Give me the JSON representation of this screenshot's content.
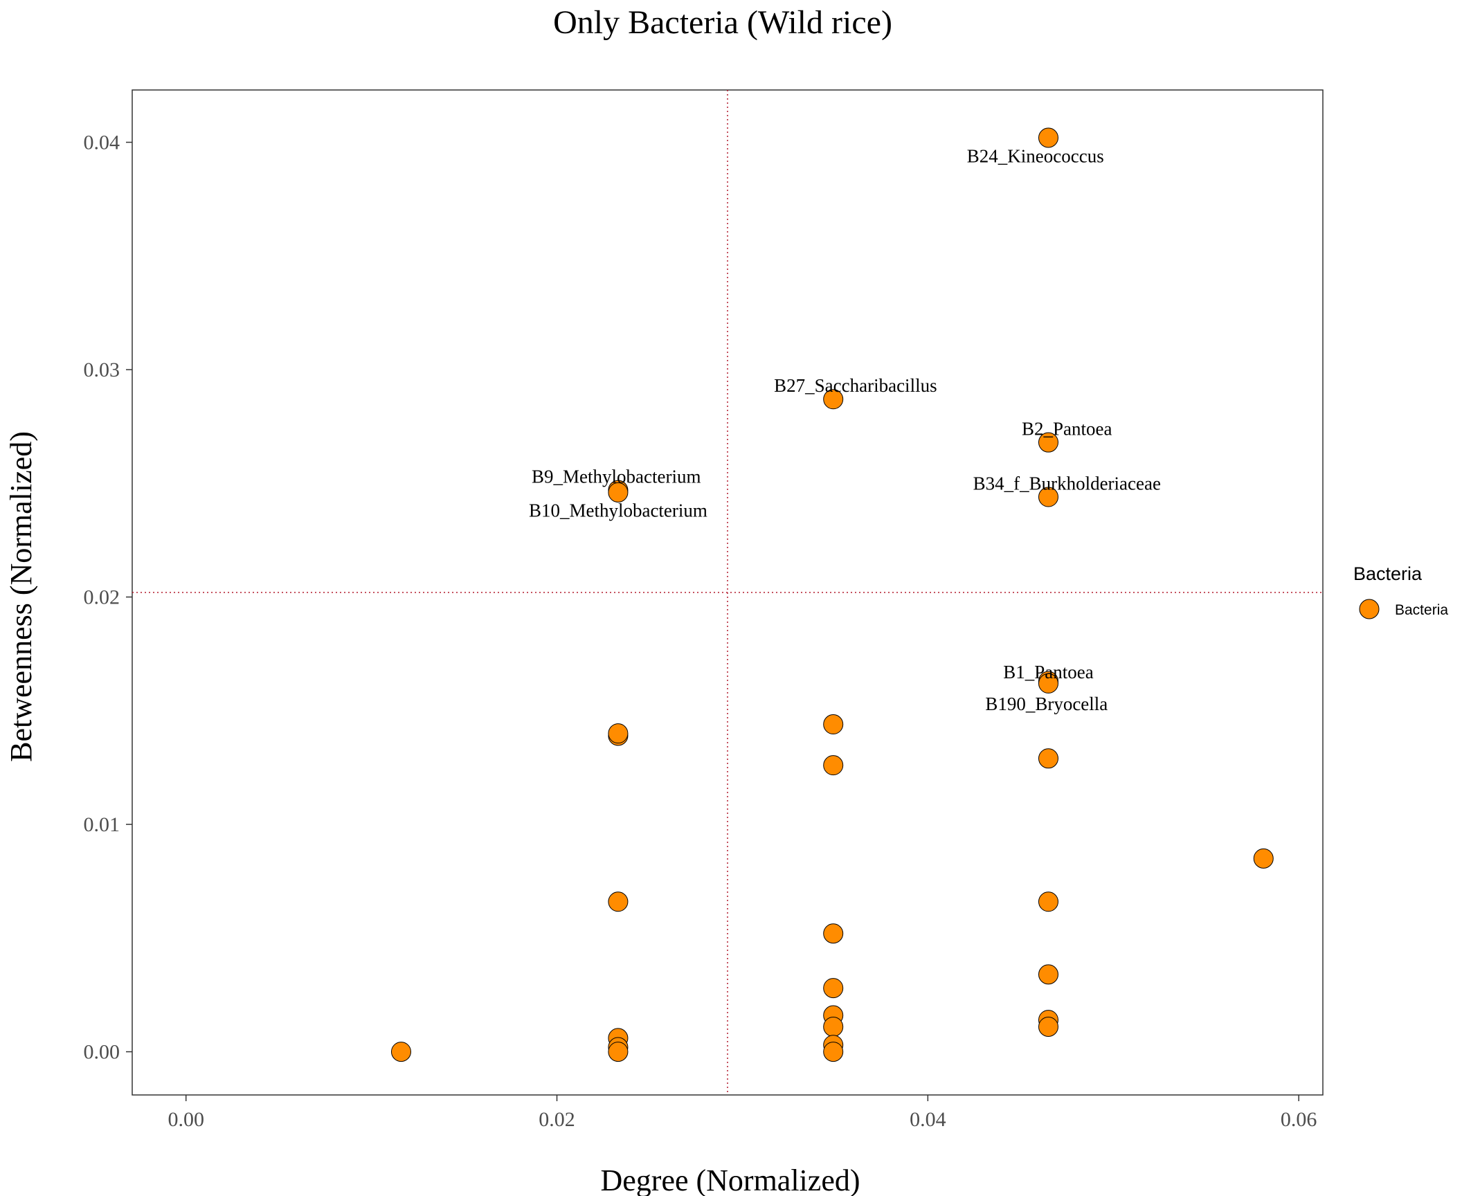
{
  "chart_data": {
    "type": "scatter",
    "title": "Only Bacteria (Wild rice)",
    "xlabel": "Degree (Normalized)",
    "ylabel": "Betweenness (Normalized)",
    "xlim": [
      -0.0029,
      0.0613
    ],
    "ylim": [
      -0.0019,
      0.0423
    ],
    "x_ticks": [
      0.0,
      0.02,
      0.04,
      0.06
    ],
    "x_tick_labels": [
      "0.00",
      "0.02",
      "0.04",
      "0.06"
    ],
    "y_ticks": [
      0.0,
      0.01,
      0.02,
      0.03,
      0.04
    ],
    "y_tick_labels": [
      "0.00",
      "0.01",
      "0.02",
      "0.03",
      "0.04"
    ],
    "grid": false,
    "reference_lines": {
      "vertical_x": 0.0292,
      "horizontal_y": 0.0202,
      "color": "#b2182b",
      "style": "dotted"
    },
    "legend": {
      "title": "Bacteria",
      "position": "right",
      "entries": [
        "Bacteria"
      ]
    },
    "marker_color": "#ff8c00",
    "marker_edge": "#000000",
    "points": [
      {
        "x": 0.0465,
        "y": 0.0402
      },
      {
        "x": 0.0349,
        "y": 0.0287
      },
      {
        "x": 0.0465,
        "y": 0.0268
      },
      {
        "x": 0.0465,
        "y": 0.0244
      },
      {
        "x": 0.0233,
        "y": 0.0247
      },
      {
        "x": 0.0233,
        "y": 0.0246
      },
      {
        "x": 0.0465,
        "y": 0.0163
      },
      {
        "x": 0.0465,
        "y": 0.0162
      },
      {
        "x": 0.0233,
        "y": 0.0139
      },
      {
        "x": 0.0233,
        "y": 0.014
      },
      {
        "x": 0.0349,
        "y": 0.0144
      },
      {
        "x": 0.0349,
        "y": 0.0126
      },
      {
        "x": 0.0465,
        "y": 0.0129
      },
      {
        "x": 0.0581,
        "y": 0.0085
      },
      {
        "x": 0.0233,
        "y": 0.0066
      },
      {
        "x": 0.0465,
        "y": 0.0066
      },
      {
        "x": 0.0349,
        "y": 0.0052
      },
      {
        "x": 0.0349,
        "y": 0.0028
      },
      {
        "x": 0.0465,
        "y": 0.0034
      },
      {
        "x": 0.0349,
        "y": 0.0016
      },
      {
        "x": 0.0349,
        "y": 0.0011
      },
      {
        "x": 0.0465,
        "y": 0.0014
      },
      {
        "x": 0.0465,
        "y": 0.0011
      },
      {
        "x": 0.0233,
        "y": 0.0006
      },
      {
        "x": 0.0233,
        "y": 0.0002
      },
      {
        "x": 0.0233,
        "y": 0.0
      },
      {
        "x": 0.0349,
        "y": 0.0003
      },
      {
        "x": 0.0349,
        "y": 0.0
      },
      {
        "x": 0.0116,
        "y": 0.0
      }
    ],
    "annotations": [
      {
        "text": "B24_Kineococcus",
        "x": 0.0458,
        "y": 0.0394
      },
      {
        "text": "B27_Saccharibacillus",
        "x": 0.0361,
        "y": 0.0293
      },
      {
        "text": "B2_Pantoea",
        "x": 0.0475,
        "y": 0.0274
      },
      {
        "text": "B34_f_Burkholderiaceae",
        "x": 0.0475,
        "y": 0.025
      },
      {
        "text": "B9_Methylobacterium",
        "x": 0.0232,
        "y": 0.0253
      },
      {
        "text": "B10_Methylobacterium",
        "x": 0.0233,
        "y": 0.0238
      },
      {
        "text": "B1_Pantoea",
        "x": 0.0465,
        "y": 0.0167
      },
      {
        "text": "B190_Bryocella",
        "x": 0.0464,
        "y": 0.0153
      }
    ]
  }
}
